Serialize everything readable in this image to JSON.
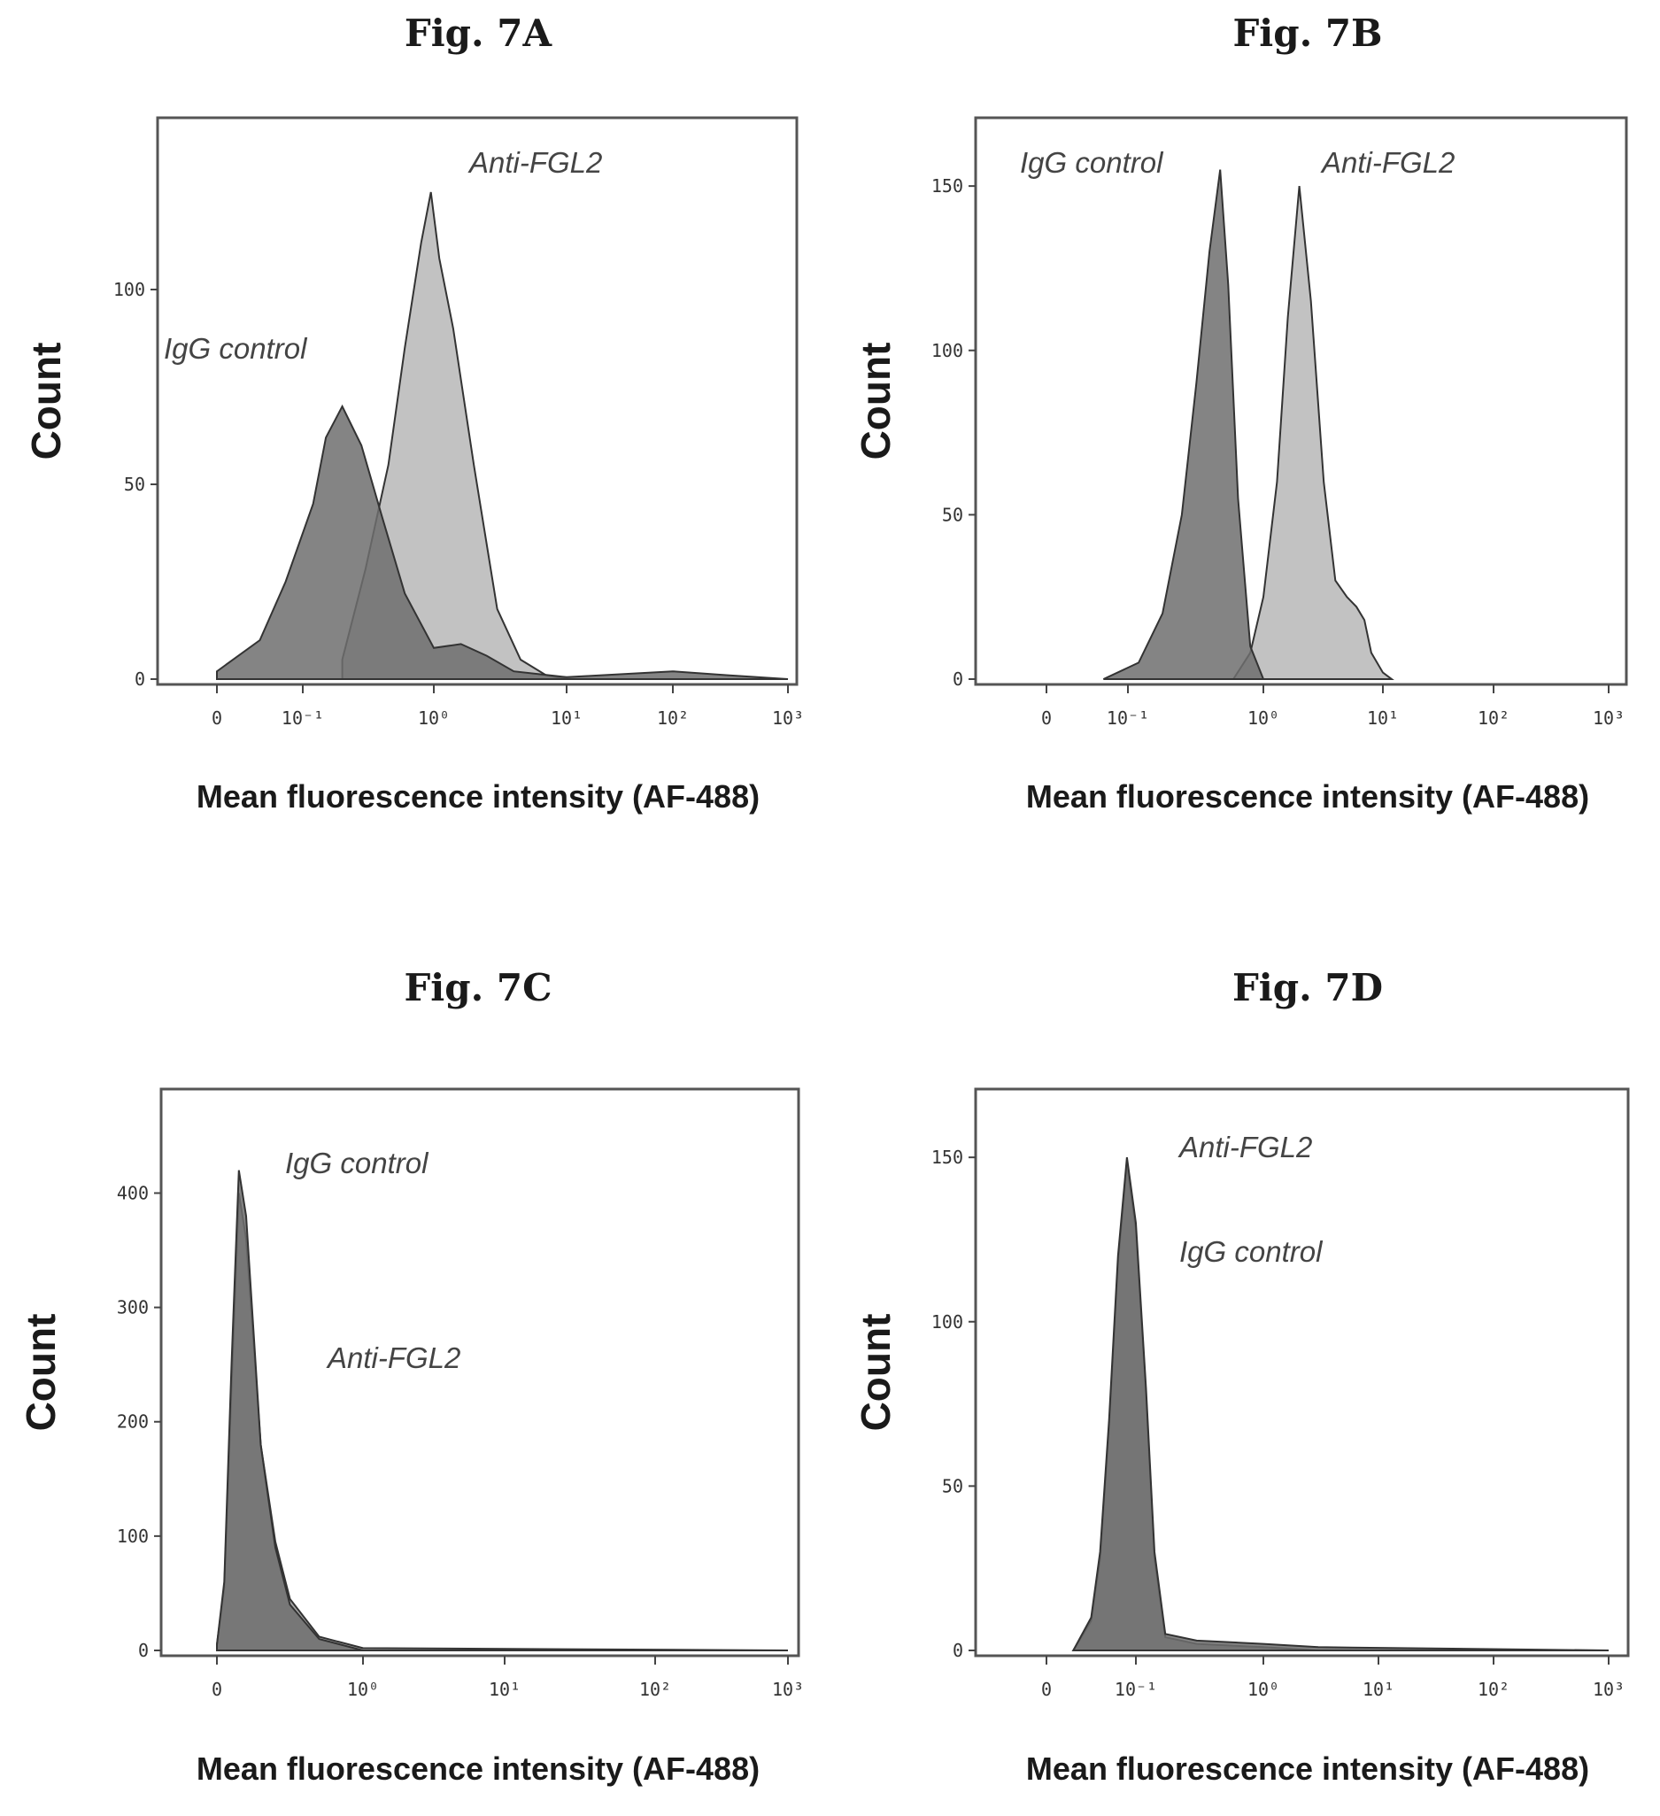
{
  "chart_data": [
    {
      "id": "7A",
      "type": "area",
      "title": "Fig. 7A",
      "xlabel": "Mean fluorescence intensity (AF-488)",
      "ylabel": "Count",
      "xscale": "biexponential",
      "xticks": [
        "0",
        "10⁻¹",
        "10⁰",
        "10¹",
        "10²",
        "10³"
      ],
      "yticks": [
        0,
        50,
        100
      ],
      "ylim": [
        0,
        135
      ],
      "grid": false,
      "series": [
        {
          "label": "IgG control",
          "color": "#6f6f6f",
          "x": [
            0,
            0.05,
            0.08,
            0.12,
            0.15,
            0.2,
            0.28,
            0.4,
            0.6,
            1,
            1.6,
            2.5,
            4,
            10,
            100,
            300,
            1000
          ],
          "y": [
            2,
            10,
            25,
            45,
            62,
            70,
            60,
            42,
            22,
            8,
            9,
            6,
            2,
            0.5,
            2,
            1,
            0
          ]
        },
        {
          "label": "Anti-FGL2",
          "color": "#b7b7b7",
          "x": [
            0.2,
            0.3,
            0.45,
            0.6,
            0.8,
            0.95,
            1.1,
            1.4,
            2,
            3,
            4.5,
            7,
            10,
            1000
          ],
          "y": [
            5,
            28,
            55,
            85,
            112,
            125,
            108,
            90,
            55,
            18,
            5,
            1,
            0,
            0
          ]
        }
      ]
    },
    {
      "id": "7B",
      "type": "area",
      "title": "Fig. 7B",
      "xlabel": "Mean fluorescence intensity (AF-488)",
      "ylabel": "Count",
      "xscale": "biexponential",
      "xticks": [
        "0",
        "10⁻¹",
        "10⁰",
        "10¹",
        "10²",
        "10³"
      ],
      "yticks": [
        0,
        50,
        100,
        150
      ],
      "ylim": [
        0,
        160
      ],
      "grid": false,
      "series": [
        {
          "label": "IgG control",
          "color": "#6f6f6f",
          "x": [
            0.07,
            0.12,
            0.18,
            0.25,
            0.32,
            0.4,
            0.48,
            0.55,
            0.65,
            0.8,
            1
          ],
          "y": [
            0,
            5,
            20,
            50,
            90,
            130,
            155,
            120,
            55,
            10,
            0
          ]
        },
        {
          "label": "Anti-FGL2",
          "color": "#b7b7b7",
          "x": [
            0.6,
            0.8,
            1,
            1.3,
            1.6,
            2,
            2.5,
            3.2,
            4,
            5,
            6,
            7,
            8,
            10,
            12
          ],
          "y": [
            0,
            8,
            25,
            60,
            110,
            150,
            115,
            60,
            30,
            25,
            22,
            18,
            8,
            2,
            0
          ]
        }
      ]
    },
    {
      "id": "7C",
      "type": "area",
      "title": "Fig. 7C",
      "xlabel": "Mean fluorescence intensity (AF-488)",
      "ylabel": "Count",
      "xscale": "biexponential",
      "xticks": [
        "0",
        "10⁰",
        "10¹",
        "10²",
        "10³"
      ],
      "yticks": [
        0,
        100,
        200,
        300,
        400
      ],
      "ylim": [
        0,
        460
      ],
      "grid": false,
      "series": [
        {
          "label": "IgG control",
          "color": "#6f6f6f",
          "x": [
            0,
            0.05,
            0.1,
            0.15,
            0.2,
            0.25,
            0.3,
            0.4,
            0.5,
            0.7,
            1,
            1000
          ],
          "y": [
            5,
            60,
            250,
            420,
            380,
            280,
            180,
            90,
            40,
            10,
            0,
            0
          ]
        },
        {
          "label": "Anti-FGL2",
          "color": "#9a9a9a",
          "x": [
            0,
            0.05,
            0.1,
            0.15,
            0.2,
            0.25,
            0.3,
            0.4,
            0.5,
            0.7,
            1,
            1000
          ],
          "y": [
            5,
            55,
            230,
            400,
            360,
            270,
            180,
            95,
            45,
            12,
            2,
            0
          ]
        }
      ]
    },
    {
      "id": "7D",
      "type": "area",
      "title": "Fig. 7D",
      "xlabel": "Mean fluorescence intensity (AF-488)",
      "ylabel": "Count",
      "xscale": "biexponential",
      "xticks": [
        "0",
        "10⁻¹",
        "10⁰",
        "10¹",
        "10²",
        "10³"
      ],
      "yticks": [
        0,
        50,
        100,
        150
      ],
      "ylim": [
        0,
        160
      ],
      "grid": false,
      "series": [
        {
          "label": "Anti-FGL2",
          "color": "#6f6f6f",
          "x": [
            0.03,
            0.05,
            0.06,
            0.07,
            0.08,
            0.09,
            0.1,
            0.12,
            0.14,
            0.17,
            0.3,
            1,
            3,
            1000
          ],
          "y": [
            0,
            10,
            30,
            70,
            120,
            150,
            130,
            80,
            30,
            5,
            3,
            2,
            1,
            0
          ]
        },
        {
          "label": "IgG control",
          "color": "#8a8a8a",
          "x": [
            0.03,
            0.05,
            0.06,
            0.07,
            0.08,
            0.09,
            0.1,
            0.12,
            0.14,
            0.17,
            0.3,
            1,
            3,
            1000
          ],
          "y": [
            0,
            9,
            28,
            68,
            118,
            148,
            128,
            78,
            28,
            4,
            2,
            1,
            0,
            0
          ]
        }
      ]
    }
  ]
}
